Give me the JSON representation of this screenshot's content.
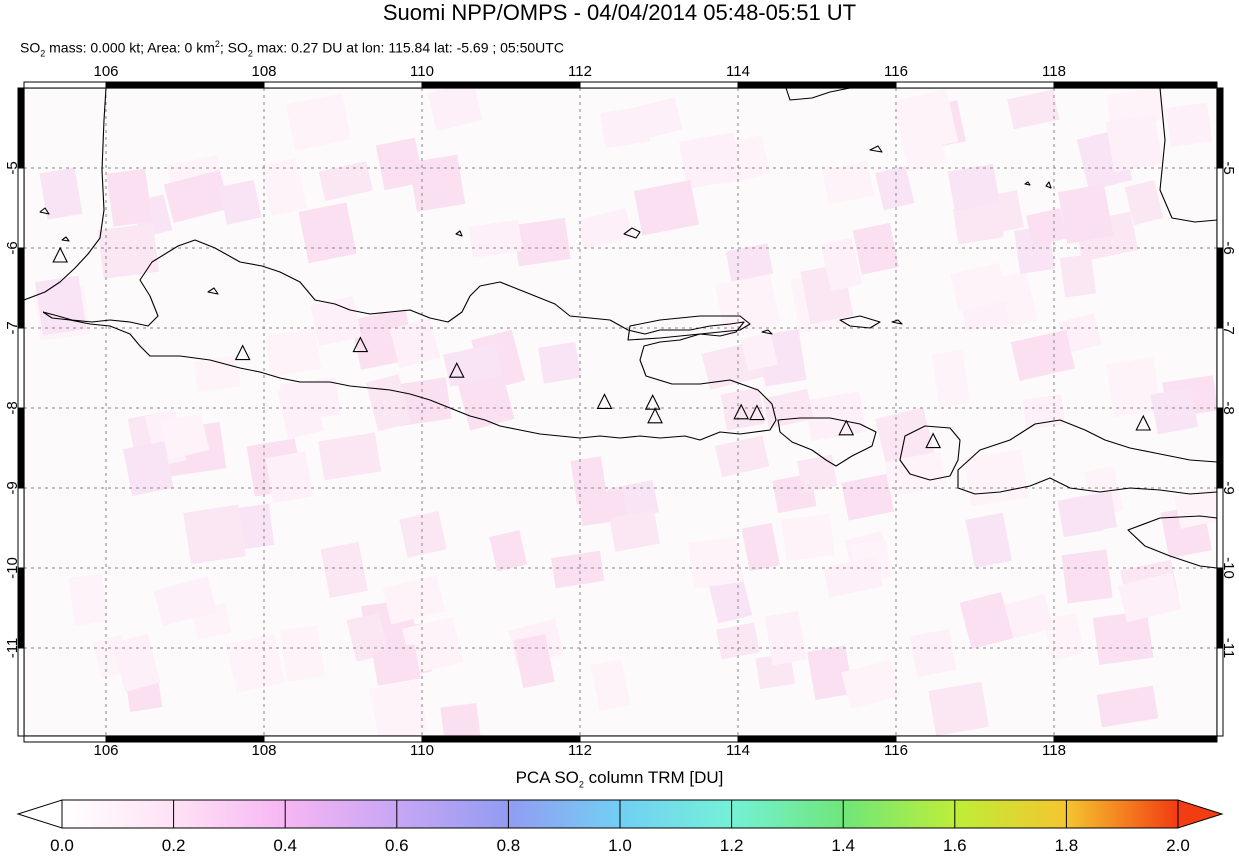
{
  "title": "Suomi NPP/OMPS - 04/04/2014 05:48-05:51 UT",
  "subtitle": {
    "so2_label": "SO",
    "mass_text": " mass: 0.000 kt; Area: 0 km",
    "area_sup": "2",
    "so2_label_2": "; SO",
    "max_text": " max: 0.27 DU at lon: 115.84 lat: -5.69 ; 05:50UTC",
    "sub2": "2"
  },
  "map": {
    "lon_ticks": [
      "106",
      "108",
      "110",
      "112",
      "114",
      "116",
      "118"
    ],
    "lat_ticks": [
      "-5",
      "-6",
      "-7",
      "-8",
      "-9",
      "-10",
      "-11"
    ],
    "grid": true,
    "background_color": "#fdfafc",
    "volcano_marker": "triangle"
  },
  "colorbar": {
    "title_prefix": "PCA SO",
    "title_sub": "2",
    "title_suffix": " column TRM [DU]",
    "labels": [
      "0.0",
      "0.2",
      "0.4",
      "0.6",
      "0.8",
      "1.0",
      "1.2",
      "1.4",
      "1.6",
      "1.8",
      "2.0"
    ],
    "colors": [
      "#ffffff",
      "#ffe6f6",
      "#f7b8f4",
      "#c8a6f4",
      "#8f9cf2",
      "#6fcdf3",
      "#72f2d9",
      "#6fe87a",
      "#b8ee3a",
      "#f4e43a",
      "#f8a228",
      "#f23d12"
    ]
  }
}
